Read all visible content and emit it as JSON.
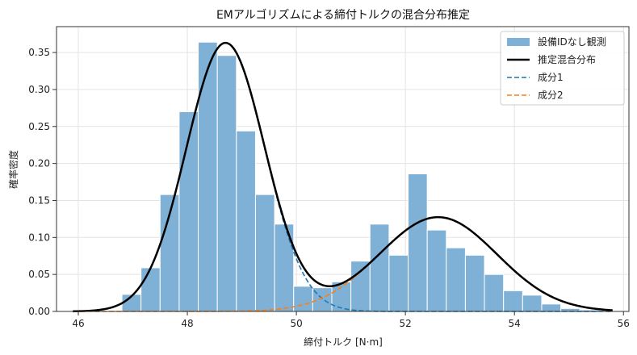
{
  "chart_data": {
    "type": "histogram_with_density_lines",
    "title": "EMアルゴリズムによる締付トルクの混合分布推定",
    "xlabel": "締付トルク [N·m]",
    "ylabel": "確率密度",
    "xlim": [
      45.6,
      56.1
    ],
    "ylim": [
      0,
      0.385
    ],
    "x_ticks": [
      46,
      48,
      50,
      52,
      54,
      56
    ],
    "y_ticks": [
      0.0,
      0.05,
      0.1,
      0.15,
      0.2,
      0.25,
      0.3,
      0.35
    ],
    "grid": true,
    "legend_position": "top-right",
    "histogram": {
      "name": "設備IDなし観測",
      "color": "#7fb0d6",
      "bin_edges": [
        46.8,
        47.15,
        47.5,
        47.85,
        48.2,
        48.55,
        48.9,
        49.25,
        49.6,
        49.95,
        50.3,
        50.65,
        51.0,
        51.35,
        51.7,
        52.05,
        52.4,
        52.75,
        53.1,
        53.45,
        53.8,
        54.15,
        54.5,
        54.85,
        55.2,
        55.55
      ],
      "values": [
        0.023,
        0.059,
        0.158,
        0.27,
        0.364,
        0.346,
        0.244,
        0.158,
        0.118,
        0.034,
        0.032,
        0.04,
        0.068,
        0.118,
        0.076,
        0.186,
        0.11,
        0.086,
        0.076,
        0.05,
        0.028,
        0.022,
        0.01,
        0.004,
        0.002
      ]
    },
    "series": [
      {
        "name": "推定混合分布",
        "color": "#000000",
        "style": "solid",
        "mixture": [
          {
            "weight": 0.655,
            "mean": 48.7,
            "sd": 0.72
          },
          {
            "weight": 0.345,
            "mean": 52.6,
            "sd": 1.08
          }
        ]
      },
      {
        "name": "成分1",
        "color": "#1f77b4",
        "style": "dashed",
        "mixture": [
          {
            "weight": 0.655,
            "mean": 48.7,
            "sd": 0.72
          }
        ]
      },
      {
        "name": "成分2",
        "color": "#ff7f0e",
        "style": "dashed",
        "mixture": [
          {
            "weight": 0.345,
            "mean": 52.6,
            "sd": 1.08
          }
        ]
      }
    ],
    "curve_x_range": [
      45.9,
      55.8
    ]
  }
}
